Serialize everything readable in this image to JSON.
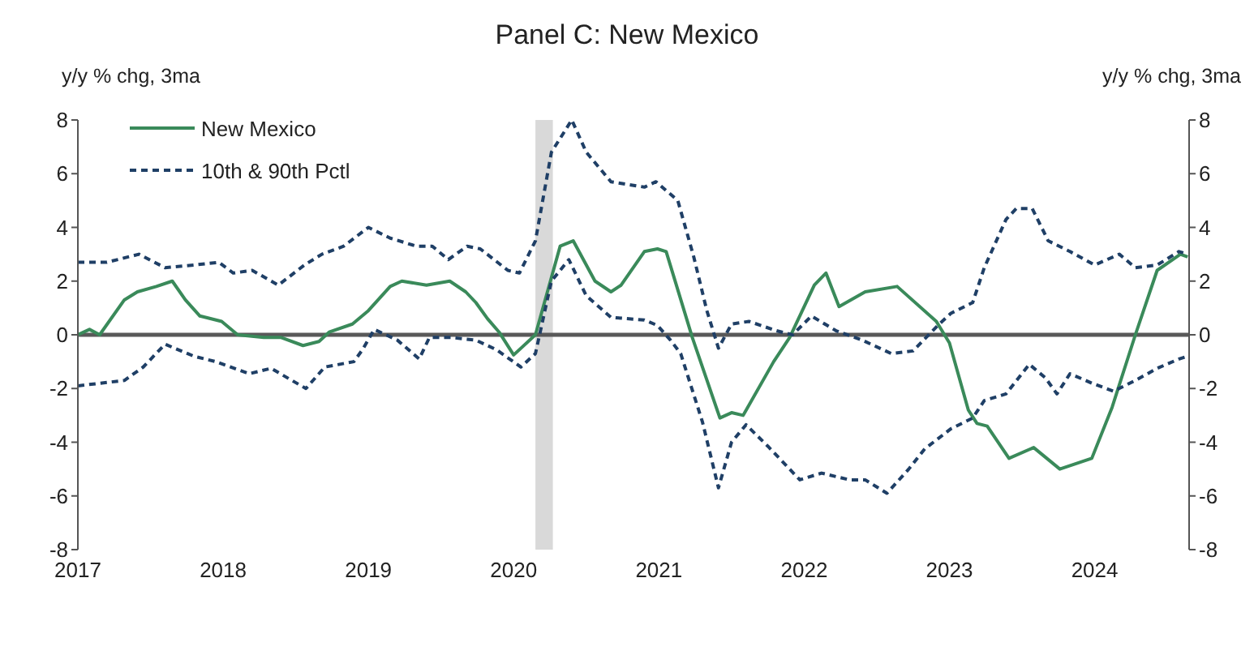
{
  "chart_data": {
    "type": "line",
    "title": "Panel C: New Mexico",
    "ylabel": "y/y % chg, 3ma",
    "y2label": "y/y % chg, 3ma",
    "xlim": [
      2017,
      2024.65
    ],
    "xticks": [
      2017,
      2018,
      2019,
      2020,
      2021,
      2022,
      2023,
      2024
    ],
    "ylim": [
      -8,
      8
    ],
    "yticks": [
      -8,
      -6,
      -4,
      -2,
      0,
      2,
      4,
      6,
      8
    ],
    "y2lim": [
      -8,
      8
    ],
    "y2ticks": [
      -8,
      -6,
      -4,
      -2,
      0,
      2,
      4,
      6,
      8
    ],
    "grid": false,
    "legend": "top left",
    "marker": "none",
    "ref_lines": [
      {
        "axis": "y",
        "value": 0,
        "color": "#595959"
      }
    ],
    "bands": [
      {
        "axis": "x",
        "from": 2020.15,
        "to": 2020.27,
        "color": "#d9d9d9"
      }
    ],
    "series": [
      {
        "name": "New Mexico",
        "color": "#3a8a5a",
        "line_style": "solid",
        "x": [
          2017,
          2017.08,
          2017.15,
          2017.32,
          2017.41,
          2017.54,
          2017.65,
          2017.74,
          2017.84,
          2017.99,
          2018.1,
          2018.28,
          2018.4,
          2018.55,
          2018.66,
          2018.73,
          2018.89,
          2019,
          2019.15,
          2019.23,
          2019.4,
          2019.56,
          2019.67,
          2019.74,
          2019.82,
          2019.9,
          2020,
          2020.15,
          2020.32,
          2020.41,
          2020.56,
          2020.67,
          2020.74,
          2020.9,
          2020.99,
          2021.05,
          2021.23,
          2021.42,
          2021.5,
          2021.58,
          2021.79,
          2021.9,
          2022.07,
          2022.15,
          2022.24,
          2022.42,
          2022.64,
          2022.91,
          2023,
          2023.13,
          2023.19,
          2023.26,
          2023.41,
          2023.58,
          2023.76,
          2023.98,
          2024.12,
          2024.28,
          2024.43,
          2024.59,
          2024.64
        ],
        "values": [
          0,
          0.2,
          0,
          1.3,
          1.6,
          1.8,
          2,
          1.3,
          0.7,
          0.5,
          0,
          -0.1,
          -0.1,
          -0.4,
          -0.25,
          0.1,
          0.4,
          0.9,
          1.8,
          2,
          1.85,
          2,
          1.6,
          1.2,
          0.6,
          0.1,
          -0.75,
          0,
          3.3,
          3.5,
          2,
          1.6,
          1.85,
          3.1,
          3.2,
          3.1,
          -0.1,
          -3.1,
          -2.9,
          -3,
          -1,
          -0.1,
          1.85,
          2.3,
          1.05,
          1.6,
          1.8,
          0.5,
          -0.3,
          -2.8,
          -3.3,
          -3.4,
          -4.6,
          -4.2,
          -5,
          -4.6,
          -2.7,
          0,
          2.4,
          3,
          2.9
        ]
      },
      {
        "name": "10th & 90th Pctl",
        "color": "#1f3f66",
        "line_style": "dashed",
        "x": [
          2017,
          2017.2,
          2017.42,
          2017.6,
          2017.8,
          2017.97,
          2018.07,
          2018.2,
          2018.38,
          2018.56,
          2018.68,
          2018.83,
          2019,
          2019.15,
          2019.33,
          2019.44,
          2019.55,
          2019.68,
          2019.77,
          2019.96,
          2020.04,
          2020.15,
          2020.26,
          2020.4,
          2020.5,
          2020.67,
          2020.9,
          2020.98,
          2021.13,
          2021.24,
          2021.33,
          2021.41,
          2021.5,
          2021.62,
          2021.81,
          2021.92,
          2022.05,
          2022.22,
          2022.4,
          2022.6,
          2022.75,
          2022.92,
          2023.01,
          2023.16,
          2023.24,
          2023.39,
          2023.46,
          2023.57,
          2023.68,
          2023.83,
          2024,
          2024.17,
          2024.28,
          2024.43,
          2024.58,
          2024.64
        ],
        "values": [
          2.7,
          2.7,
          3,
          2.5,
          2.6,
          2.7,
          2.3,
          2.4,
          1.85,
          2.6,
          3,
          3.3,
          4,
          3.6,
          3.3,
          3.3,
          2.8,
          3.3,
          3.2,
          2.4,
          2.3,
          3.5,
          6.8,
          8,
          6.8,
          5.7,
          5.5,
          5.7,
          5,
          2.9,
          0.9,
          -0.5,
          0.4,
          0.5,
          0.15,
          0,
          0.7,
          0.15,
          -0.2,
          -0.7,
          -0.6,
          0.35,
          0.8,
          1.2,
          2.5,
          4.3,
          4.7,
          4.7,
          3.5,
          3.1,
          2.6,
          3,
          2.5,
          2.6,
          3.1,
          3
        ]
      },
      {
        "color": "#1f3f66",
        "line_style": "dashed",
        "x": [
          2017,
          2017.32,
          2017.45,
          2017.6,
          2017.8,
          2017.95,
          2018.18,
          2018.33,
          2018.57,
          2018.7,
          2018.9,
          2018.96,
          2019.04,
          2019.2,
          2019.35,
          2019.42,
          2019.57,
          2019.74,
          2019.88,
          2020.05,
          2020.15,
          2020.26,
          2020.38,
          2020.5,
          2020.67,
          2020.9,
          2020.99,
          2021.08,
          2021.15,
          2021.3,
          2021.41,
          2021.5,
          2021.6,
          2021.75,
          2021.97,
          2022.12,
          2022.31,
          2022.42,
          2022.57,
          2022.72,
          2022.83,
          2023.01,
          2023.16,
          2023.24,
          2023.39,
          2023.55,
          2023.66,
          2023.74,
          2023.83,
          2023.98,
          2024.13,
          2024.28,
          2024.43,
          2024.58,
          2024.64
        ],
        "values": [
          -1.9,
          -1.7,
          -1.2,
          -0.35,
          -0.8,
          -1,
          -1.45,
          -1.25,
          -2,
          -1.2,
          -1,
          -0.55,
          0.2,
          -0.2,
          -0.9,
          -0.1,
          -0.1,
          -0.2,
          -0.55,
          -1.2,
          -0.7,
          2,
          2.8,
          1.45,
          0.65,
          0.55,
          0.35,
          -0.2,
          -0.7,
          -3.25,
          -5.7,
          -4,
          -3.35,
          -4.15,
          -5.4,
          -5.15,
          -5.4,
          -5.4,
          -5.9,
          -5,
          -4.25,
          -3.5,
          -3.1,
          -2.45,
          -2.2,
          -1.1,
          -1.6,
          -2.2,
          -1.45,
          -1.8,
          -2.1,
          -1.7,
          -1.25,
          -0.9,
          -0.8
        ]
      }
    ]
  }
}
